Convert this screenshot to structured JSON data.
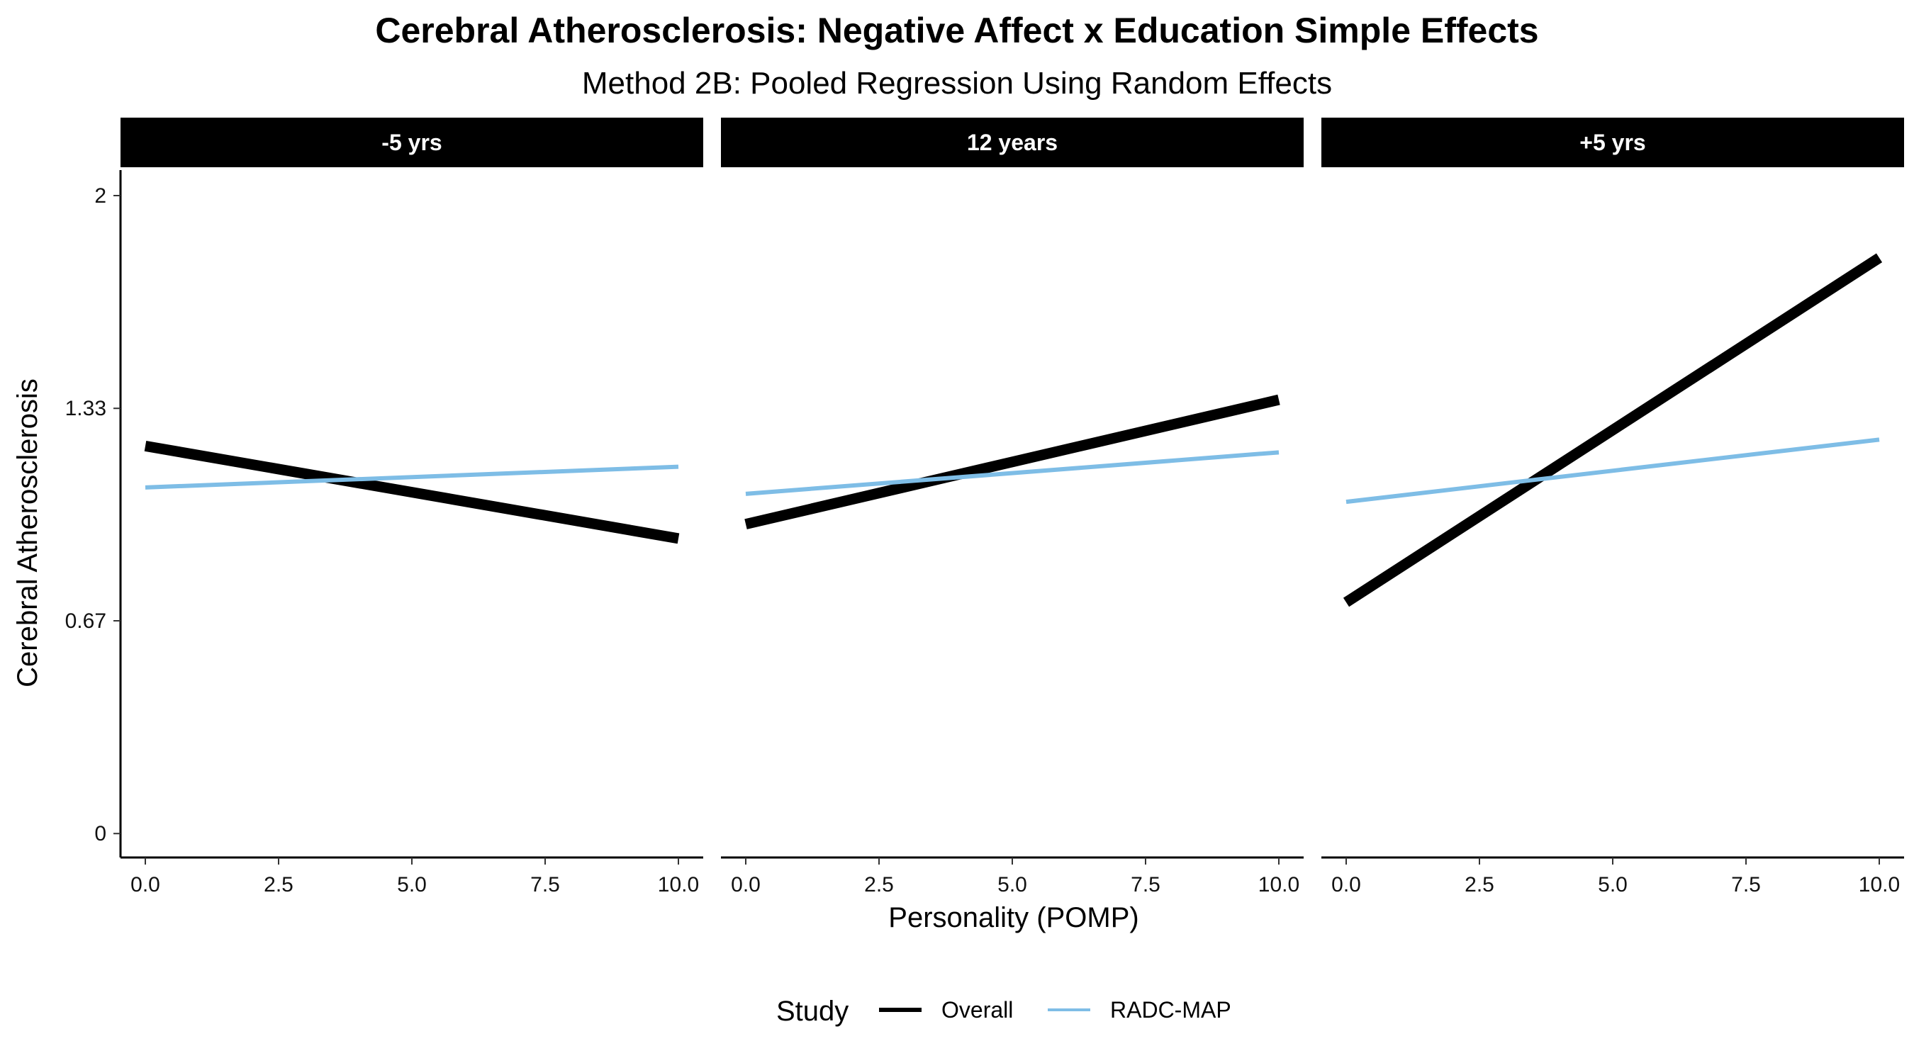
{
  "chart_data": {
    "type": "line",
    "title": "Cerebral Atherosclerosis: Negative Affect x Education Simple Effects",
    "subtitle": "Method 2B: Pooled Regression Using Random Effects",
    "xlabel": "Personality (POMP)",
    "ylabel": "Cerebral Atherosclerosis",
    "xlim": [
      0,
      10
    ],
    "ylim": [
      0,
      2
    ],
    "x_ticks": [
      "0.0",
      "2.5",
      "5.0",
      "7.5",
      "10.0"
    ],
    "x_tick_values": [
      0,
      2.5,
      5,
      7.5,
      10
    ],
    "y_ticks": [
      "0",
      "0.67",
      "1.33",
      "2"
    ],
    "y_tick_values": [
      0,
      0.667,
      1.333,
      2
    ],
    "grid": false,
    "legend": {
      "title": "Study",
      "position": "bottom",
      "entries": [
        "Overall",
        "RADC-MAP"
      ]
    },
    "series_colors": {
      "Overall": "#000000",
      "RADC-MAP": "#7EBDE6"
    },
    "panels": [
      {
        "label": "-5 yrs",
        "series": [
          {
            "name": "Overall",
            "x": [
              0,
              10
            ],
            "y": [
              1.215,
              0.925
            ]
          },
          {
            "name": "RADC-MAP",
            "x": [
              0,
              10
            ],
            "y": [
              1.085,
              1.15
            ]
          }
        ]
      },
      {
        "label": "12 years",
        "series": [
          {
            "name": "Overall",
            "x": [
              0,
              10
            ],
            "y": [
              0.97,
              1.36
            ]
          },
          {
            "name": "RADC-MAP",
            "x": [
              0,
              10
            ],
            "y": [
              1.065,
              1.195
            ]
          }
        ]
      },
      {
        "label": "+5 yrs",
        "series": [
          {
            "name": "Overall",
            "x": [
              0,
              10
            ],
            "y": [
              0.725,
              1.805
            ]
          },
          {
            "name": "RADC-MAP",
            "x": [
              0,
              10
            ],
            "y": [
              1.04,
              1.235
            ]
          }
        ]
      }
    ]
  }
}
